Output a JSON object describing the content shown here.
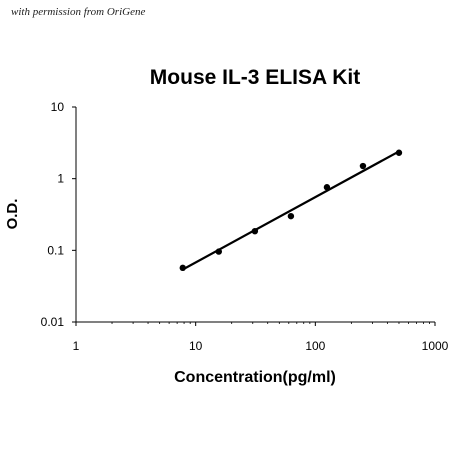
{
  "credit": "with permission from OriGene",
  "colors": {
    "background": "#ffffff",
    "ink": "#000000"
  },
  "chart_data": {
    "type": "scatter",
    "title": "Mouse IL-3 ELISA Kit",
    "xlabel": "Concentration(pg/ml)",
    "ylabel": "O.D.",
    "xscale": "log",
    "yscale": "log",
    "xlim": [
      1,
      1000
    ],
    "ylim": [
      0.01,
      10
    ],
    "x_ticks": [
      1,
      10,
      100,
      1000
    ],
    "x_tick_labels": [
      "1",
      "10",
      "100",
      "1000"
    ],
    "y_ticks": [
      0.01,
      0.1,
      1,
      10
    ],
    "y_tick_labels": [
      "0.01",
      "0.1",
      "1",
      "10"
    ],
    "grid": false,
    "legend": "none",
    "series": [
      {
        "points": [
          {
            "x": 7.8,
            "y": 0.057
          },
          {
            "x": 15.6,
            "y": 0.096
          },
          {
            "x": 31.25,
            "y": 0.185
          },
          {
            "x": 62.5,
            "y": 0.3
          },
          {
            "x": 125,
            "y": 0.76
          },
          {
            "x": 250,
            "y": 1.5
          },
          {
            "x": 500,
            "y": 2.3
          }
        ]
      }
    ],
    "fit_line": {
      "x": [
        7.8,
        500
      ],
      "y": [
        0.054,
        2.4
      ]
    }
  }
}
